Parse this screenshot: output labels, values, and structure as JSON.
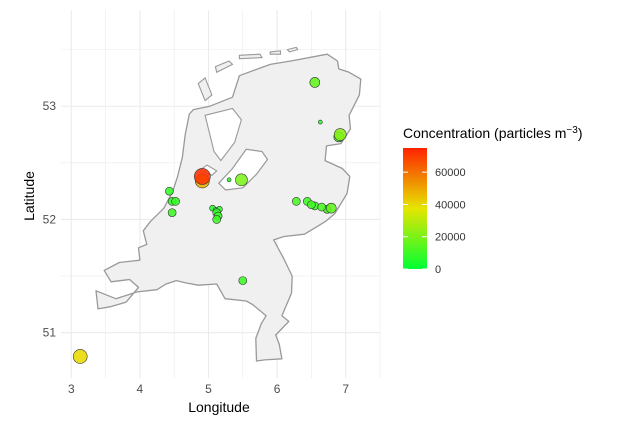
{
  "chart_data": {
    "type": "scatter",
    "xlabel": "Longitude",
    "ylabel": "Latitude",
    "xlim": [
      2.85,
      7.5
    ],
    "ylim": [
      50.6,
      53.85
    ],
    "x_ticks": [
      3,
      4,
      5,
      6,
      7
    ],
    "y_ticks": [
      51,
      52,
      53
    ],
    "grid": true,
    "legend": {
      "title": "Concentration (particles m",
      "title_superscript": "−3",
      "title_close": ")",
      "placement": "right",
      "ticks": [
        0,
        20000,
        40000,
        60000
      ],
      "range": [
        0,
        75000
      ],
      "colors": [
        "#00ff33",
        "#e6e600",
        "#ff2200"
      ]
    },
    "points": [
      {
        "lon": 3.13,
        "lat": 50.79,
        "value": 40000,
        "size": 7
      },
      {
        "lon": 4.91,
        "lat": 52.38,
        "value": 72000,
        "size": 8
      },
      {
        "lon": 4.91,
        "lat": 52.34,
        "value": 48000,
        "size": 7
      },
      {
        "lon": 5.48,
        "lat": 52.35,
        "value": 20000,
        "size": 6
      },
      {
        "lon": 5.3,
        "lat": 52.35,
        "value": 5000,
        "size": 2
      },
      {
        "lon": 4.43,
        "lat": 52.25,
        "value": 8000,
        "size": 4
      },
      {
        "lon": 4.47,
        "lat": 52.16,
        "value": 8000,
        "size": 4
      },
      {
        "lon": 4.52,
        "lat": 52.16,
        "value": 9000,
        "size": 4
      },
      {
        "lon": 4.47,
        "lat": 52.06,
        "value": 10000,
        "size": 4
      },
      {
        "lon": 5.06,
        "lat": 52.1,
        "value": 6000,
        "size": 3
      },
      {
        "lon": 5.11,
        "lat": 52.08,
        "value": 6000,
        "size": 3
      },
      {
        "lon": 5.16,
        "lat": 52.09,
        "value": 7000,
        "size": 3
      },
      {
        "lon": 5.12,
        "lat": 52.06,
        "value": 9000,
        "size": 4
      },
      {
        "lon": 5.14,
        "lat": 52.03,
        "value": 9000,
        "size": 4
      },
      {
        "lon": 5.12,
        "lat": 52.0,
        "value": 10000,
        "size": 4
      },
      {
        "lon": 6.55,
        "lat": 53.21,
        "value": 16000,
        "size": 5
      },
      {
        "lon": 6.63,
        "lat": 52.86,
        "value": 5000,
        "size": 2
      },
      {
        "lon": 6.92,
        "lat": 52.75,
        "value": 22000,
        "size": 6
      },
      {
        "lon": 6.9,
        "lat": 52.73,
        "value": 12000,
        "size": 5
      },
      {
        "lon": 6.28,
        "lat": 52.16,
        "value": 12000,
        "size": 4
      },
      {
        "lon": 6.44,
        "lat": 52.16,
        "value": 10000,
        "size": 4
      },
      {
        "lon": 6.5,
        "lat": 52.13,
        "value": 11000,
        "size": 4
      },
      {
        "lon": 6.55,
        "lat": 52.12,
        "value": 9000,
        "size": 4
      },
      {
        "lon": 6.65,
        "lat": 52.11,
        "value": 12000,
        "size": 4
      },
      {
        "lon": 6.73,
        "lat": 52.09,
        "value": 10000,
        "size": 4
      },
      {
        "lon": 6.79,
        "lat": 52.1,
        "value": 16000,
        "size": 5
      },
      {
        "lon": 5.5,
        "lat": 51.46,
        "value": 10000,
        "size": 4
      }
    ]
  }
}
